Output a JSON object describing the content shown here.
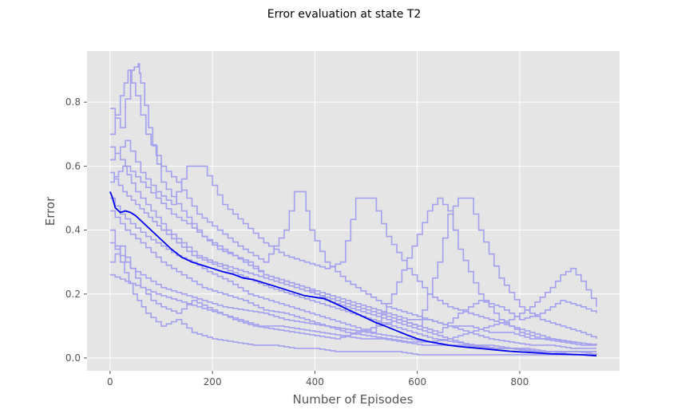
{
  "chart_data": {
    "type": "line",
    "title": "Error evaluation at state T2",
    "xlabel": "Number of Episodes",
    "ylabel": "Error",
    "xlim": [
      -45,
      995
    ],
    "ylim": [
      -0.04,
      0.96
    ],
    "xticks": [
      0,
      200,
      400,
      600,
      800
    ],
    "yticks": [
      0.0,
      0.2,
      0.4,
      0.6,
      0.8
    ],
    "xtick_labels": [
      "0",
      "200",
      "400",
      "600",
      "800"
    ],
    "ytick_labels": [
      "0.0",
      "0.2",
      "0.4",
      "0.6",
      "0.8"
    ],
    "grid": true,
    "legend": "none",
    "background_color": "#e5e5e5",
    "run_color": "#a3a0ee",
    "mean_color": "#0000ee",
    "mean_series": {
      "x": [
        0,
        5,
        10,
        20,
        30,
        40,
        50,
        60,
        80,
        100,
        120,
        140,
        160,
        180,
        200,
        220,
        240,
        260,
        280,
        300,
        320,
        340,
        360,
        380,
        400,
        420,
        440,
        460,
        480,
        500,
        520,
        540,
        560,
        580,
        600,
        620,
        640,
        660,
        680,
        700,
        720,
        740,
        760,
        780,
        800,
        820,
        840,
        860,
        880,
        900,
        920,
        950
      ],
      "y": [
        0.52,
        0.5,
        0.47,
        0.455,
        0.46,
        0.455,
        0.445,
        0.43,
        0.4,
        0.37,
        0.34,
        0.315,
        0.3,
        0.29,
        0.28,
        0.27,
        0.262,
        0.25,
        0.245,
        0.235,
        0.225,
        0.215,
        0.205,
        0.195,
        0.19,
        0.185,
        0.17,
        0.155,
        0.14,
        0.125,
        0.11,
        0.098,
        0.085,
        0.072,
        0.06,
        0.052,
        0.046,
        0.04,
        0.036,
        0.033,
        0.03,
        0.027,
        0.024,
        0.021,
        0.019,
        0.017,
        0.015,
        0.013,
        0.012,
        0.011,
        0.01,
        0.007
      ]
    },
    "runs": [
      {
        "x": [
          0,
          20,
          40,
          55,
          60,
          75,
          100,
          140,
          180,
          220,
          260,
          300,
          340,
          380,
          420,
          460,
          500,
          540,
          580,
          620,
          660,
          700,
          740,
          780,
          820,
          860,
          900,
          950
        ],
        "y": [
          0.78,
          0.72,
          0.9,
          0.92,
          0.86,
          0.72,
          0.55,
          0.46,
          0.38,
          0.34,
          0.3,
          0.26,
          0.24,
          0.22,
          0.18,
          0.16,
          0.14,
          0.12,
          0.1,
          0.08,
          0.06,
          0.04,
          0.04,
          0.03,
          0.02,
          0.02,
          0.02,
          0.02
        ]
      },
      {
        "x": [
          0,
          20,
          35,
          50,
          70,
          100,
          130,
          170,
          210,
          250,
          300,
          340,
          360,
          375,
          390,
          420,
          460,
          500,
          540,
          580,
          620,
          660,
          700,
          740,
          780,
          820,
          860,
          900,
          950
        ],
        "y": [
          0.7,
          0.82,
          0.9,
          0.82,
          0.7,
          0.6,
          0.55,
          0.45,
          0.4,
          0.35,
          0.3,
          0.4,
          0.52,
          0.52,
          0.4,
          0.3,
          0.24,
          0.2,
          0.16,
          0.14,
          0.12,
          0.1,
          0.08,
          0.06,
          0.05,
          0.04,
          0.04,
          0.03,
          0.03
        ]
      },
      {
        "x": [
          0,
          30,
          60,
          90,
          120,
          150,
          180,
          220,
          260,
          300,
          340,
          380,
          420,
          450,
          480,
          510,
          540,
          580,
          620,
          660,
          700,
          740,
          780,
          820,
          860,
          900,
          950
        ],
        "y": [
          0.62,
          0.68,
          0.58,
          0.52,
          0.48,
          0.6,
          0.6,
          0.48,
          0.42,
          0.36,
          0.32,
          0.3,
          0.28,
          0.3,
          0.5,
          0.5,
          0.38,
          0.28,
          0.2,
          0.16,
          0.14,
          0.12,
          0.1,
          0.08,
          0.06,
          0.05,
          0.04
        ]
      },
      {
        "x": [
          0,
          25,
          50,
          80,
          110,
          140,
          170,
          200,
          240,
          280,
          320,
          360,
          400,
          440,
          480,
          520,
          560,
          600,
          640,
          660,
          680,
          700,
          720,
          760,
          800,
          840,
          880,
          920,
          950
        ],
        "y": [
          0.55,
          0.6,
          0.52,
          0.46,
          0.4,
          0.36,
          0.32,
          0.3,
          0.28,
          0.26,
          0.24,
          0.22,
          0.2,
          0.18,
          0.16,
          0.14,
          0.12,
          0.1,
          0.3,
          0.45,
          0.5,
          0.5,
          0.4,
          0.25,
          0.16,
          0.12,
          0.1,
          0.08,
          0.06
        ]
      },
      {
        "x": [
          0,
          20,
          40,
          70,
          100,
          130,
          160,
          190,
          230,
          270,
          310,
          350,
          390,
          430,
          470,
          510,
          550,
          590,
          620,
          640,
          660,
          680,
          720,
          760,
          800,
          840,
          880,
          920,
          950
        ],
        "y": [
          0.5,
          0.45,
          0.42,
          0.38,
          0.35,
          0.32,
          0.3,
          0.27,
          0.24,
          0.2,
          0.18,
          0.16,
          0.14,
          0.12,
          0.1,
          0.08,
          0.2,
          0.35,
          0.46,
          0.5,
          0.46,
          0.34,
          0.2,
          0.12,
          0.08,
          0.06,
          0.05,
          0.04,
          0.04
        ]
      },
      {
        "x": [
          0,
          30,
          60,
          100,
          140,
          180,
          220,
          260,
          300,
          340,
          380,
          420,
          460,
          500,
          540,
          580,
          620,
          660,
          700,
          740,
          780,
          820,
          860,
          880,
          900,
          920,
          950
        ],
        "y": [
          0.46,
          0.4,
          0.36,
          0.3,
          0.26,
          0.22,
          0.2,
          0.18,
          0.15,
          0.14,
          0.12,
          0.1,
          0.08,
          0.07,
          0.06,
          0.05,
          0.05,
          0.06,
          0.08,
          0.1,
          0.12,
          0.16,
          0.22,
          0.26,
          0.28,
          0.24,
          0.16
        ]
      },
      {
        "x": [
          0,
          20,
          45,
          70,
          100,
          130,
          160,
          200,
          240,
          280,
          320,
          360,
          400,
          440,
          480,
          520,
          560,
          600,
          640,
          680,
          720,
          760,
          800,
          840,
          880,
          920,
          950
        ],
        "y": [
          0.4,
          0.3,
          0.2,
          0.14,
          0.1,
          0.12,
          0.08,
          0.06,
          0.05,
          0.04,
          0.04,
          0.03,
          0.03,
          0.02,
          0.02,
          0.02,
          0.02,
          0.01,
          0.01,
          0.01,
          0.01,
          0.01,
          0.01,
          0.01,
          0.01,
          0.01,
          0.01
        ]
      },
      {
        "x": [
          0,
          20,
          40,
          60,
          80,
          100,
          130,
          160,
          200,
          240,
          280,
          320,
          360,
          400,
          440,
          480,
          520,
          560,
          600,
          640,
          680,
          720,
          760,
          800,
          840,
          880,
          920,
          950
        ],
        "y": [
          0.3,
          0.35,
          0.28,
          0.22,
          0.18,
          0.16,
          0.14,
          0.18,
          0.15,
          0.12,
          0.1,
          0.09,
          0.08,
          0.07,
          0.06,
          0.08,
          0.1,
          0.12,
          0.1,
          0.08,
          0.14,
          0.18,
          0.16,
          0.12,
          0.14,
          0.18,
          0.16,
          0.14
        ]
      },
      {
        "x": [
          0,
          30,
          60,
          90,
          120,
          150,
          180,
          210,
          240,
          270,
          300,
          340,
          380,
          420,
          460,
          500,
          540,
          580,
          620,
          660,
          700,
          740,
          780,
          820,
          860,
          900,
          950
        ],
        "y": [
          0.66,
          0.6,
          0.55,
          0.5,
          0.45,
          0.42,
          0.38,
          0.34,
          0.32,
          0.3,
          0.26,
          0.24,
          0.22,
          0.2,
          0.18,
          0.16,
          0.14,
          0.12,
          0.12,
          0.1,
          0.1,
          0.08,
          0.08,
          0.06,
          0.06,
          0.05,
          0.04
        ]
      },
      {
        "x": [
          0,
          25,
          50,
          75,
          100,
          130,
          160,
          190,
          220,
          250,
          280,
          310,
          350,
          390,
          430,
          470,
          510,
          550,
          590,
          630,
          670,
          710,
          750,
          790,
          830,
          870,
          910,
          950
        ],
        "y": [
          0.58,
          0.52,
          0.48,
          0.44,
          0.4,
          0.36,
          0.32,
          0.3,
          0.28,
          0.26,
          0.24,
          0.22,
          0.2,
          0.18,
          0.16,
          0.14,
          0.12,
          0.1,
          0.08,
          0.06,
          0.05,
          0.04,
          0.03,
          0.03,
          0.02,
          0.02,
          0.02,
          0.01
        ]
      },
      {
        "x": [
          0,
          20,
          40,
          70,
          100,
          140,
          180,
          220,
          260,
          300,
          340,
          380,
          420,
          460,
          500,
          540,
          580,
          620,
          660,
          700,
          740,
          780,
          820,
          860,
          900,
          950
        ],
        "y": [
          0.36,
          0.32,
          0.28,
          0.25,
          0.22,
          0.2,
          0.18,
          0.16,
          0.15,
          0.14,
          0.12,
          0.11,
          0.1,
          0.09,
          0.08,
          0.07,
          0.06,
          0.05,
          0.04,
          0.04,
          0.03,
          0.03,
          0.02,
          0.02,
          0.01,
          0.01
        ]
      },
      {
        "x": [
          0,
          30,
          60,
          90,
          130,
          170,
          210,
          250,
          290,
          330,
          370,
          410,
          450,
          490,
          530,
          570,
          610,
          650,
          690,
          730,
          770,
          810,
          850,
          890,
          930,
          950
        ],
        "y": [
          0.26,
          0.24,
          0.22,
          0.2,
          0.18,
          0.16,
          0.14,
          0.12,
          0.1,
          0.1,
          0.09,
          0.08,
          0.07,
          0.06,
          0.06,
          0.05,
          0.04,
          0.04,
          0.04,
          0.03,
          0.03,
          0.03,
          0.02,
          0.02,
          0.02,
          0.02
        ]
      }
    ]
  }
}
